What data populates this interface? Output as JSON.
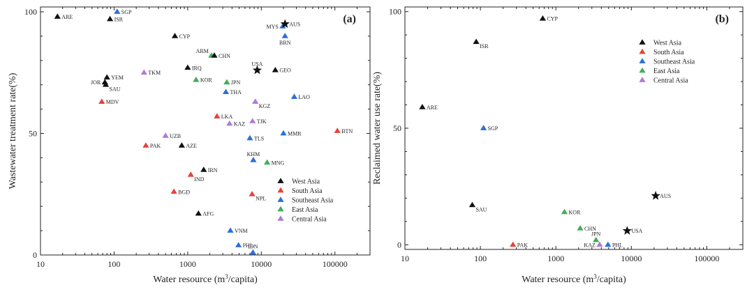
{
  "colors": {
    "West Asia": "#111111",
    "South Asia": "#e8423a",
    "Southeast Asia": "#2a6fdb",
    "East Asia": "#3fae5a",
    "Central Asia": "#b07ad8"
  },
  "chart_data": [
    {
      "type": "scatter",
      "panel_label": "(a)",
      "xlabel": "Water resource (m3/capita)",
      "xlabel_base": "Water resource (m",
      "xlabel_sup": "3",
      "xlabel_tail": "/capita)",
      "ylabel": "Wastewater treatment rate(%)",
      "xscale": "log",
      "xlim": [
        10,
        300000
      ],
      "ylim": [
        0,
        102
      ],
      "xticks": [
        10,
        100,
        1000,
        10000,
        100000
      ],
      "xtick_labels": [
        "10",
        "100",
        "1000",
        "10000",
        "100000"
      ],
      "yticks": [
        0,
        50,
        100
      ],
      "ytick_labels": [
        "0",
        "50",
        "100"
      ],
      "legend": [
        "West Asia",
        "South Asia",
        "Southeast Asia",
        "East Asia",
        "Central Asia"
      ],
      "legend_position": "lower-right",
      "points": [
        {
          "label": "ARE",
          "x": 17,
          "y": 98,
          "group": "West Asia"
        },
        {
          "label": "ISR",
          "x": 88,
          "y": 97,
          "group": "West Asia"
        },
        {
          "label": "SGP",
          "x": 110,
          "y": 100,
          "group": "Southeast Asia"
        },
        {
          "label": "CYP",
          "x": 670,
          "y": 90,
          "group": "West Asia"
        },
        {
          "label": "MYS",
          "x": 19500,
          "y": 94,
          "group": "Southeast Asia",
          "label_side": "left"
        },
        {
          "label": "AUS",
          "x": 21000,
          "y": 95,
          "group": "West Asia",
          "marker": "star"
        },
        {
          "label": "BRN",
          "x": 21000,
          "y": 90,
          "group": "Southeast Asia",
          "label_side": "below"
        },
        {
          "label": "ARM",
          "x": 2100,
          "y": 82,
          "group": "East Asia",
          "label_side": "above-left"
        },
        {
          "label": "CHN",
          "x": 2300,
          "y": 82,
          "group": "West Asia"
        },
        {
          "label": "YEM",
          "x": 80,
          "y": 73,
          "group": "West Asia"
        },
        {
          "label": "TKM",
          "x": 255,
          "y": 75,
          "group": "Central Asia"
        },
        {
          "label": "IRQ",
          "x": 1000,
          "y": 77,
          "group": "West Asia"
        },
        {
          "label": "USA",
          "x": 8800,
          "y": 76,
          "group": "West Asia",
          "marker": "star",
          "label_side": "above"
        },
        {
          "label": "GEO",
          "x": 15500,
          "y": 76,
          "group": "West Asia"
        },
        {
          "label": "KOR",
          "x": 1300,
          "y": 72,
          "group": "East Asia"
        },
        {
          "label": "JPN",
          "x": 3400,
          "y": 71,
          "group": "East Asia"
        },
        {
          "label": "JOR",
          "x": 75,
          "y": 71,
          "group": "West Asia",
          "label_side": "left"
        },
        {
          "label": "SAU",
          "x": 77,
          "y": 70,
          "group": "West Asia",
          "label_side": "below-right"
        },
        {
          "label": "THA",
          "x": 3300,
          "y": 67,
          "group": "Southeast Asia"
        },
        {
          "label": "LAO",
          "x": 28000,
          "y": 65,
          "group": "Southeast Asia"
        },
        {
          "label": "MDV",
          "x": 68,
          "y": 63,
          "group": "South Asia"
        },
        {
          "label": "KGZ",
          "x": 8300,
          "y": 63,
          "group": "Central Asia",
          "label_side": "below-right"
        },
        {
          "label": "LKA",
          "x": 2500,
          "y": 57,
          "group": "South Asia"
        },
        {
          "label": "KAZ",
          "x": 3700,
          "y": 54,
          "group": "Central Asia"
        },
        {
          "label": "TJK",
          "x": 7600,
          "y": 55,
          "group": "Central Asia"
        },
        {
          "label": "BTN",
          "x": 108000,
          "y": 51,
          "group": "South Asia"
        },
        {
          "label": "MMR",
          "x": 20000,
          "y": 50,
          "group": "Southeast Asia"
        },
        {
          "label": "UZB",
          "x": 500,
          "y": 49,
          "group": "Central Asia"
        },
        {
          "label": "TLS",
          "x": 7000,
          "y": 48,
          "group": "Southeast Asia"
        },
        {
          "label": "PAK",
          "x": 270,
          "y": 45,
          "group": "South Asia"
        },
        {
          "label": "AZE",
          "x": 830,
          "y": 45,
          "group": "West Asia"
        },
        {
          "label": "KHM",
          "x": 7800,
          "y": 39,
          "group": "Southeast Asia",
          "label_side": "above"
        },
        {
          "label": "MNG",
          "x": 12000,
          "y": 38,
          "group": "East Asia"
        },
        {
          "label": "IRN",
          "x": 1650,
          "y": 35,
          "group": "West Asia"
        },
        {
          "label": "IND",
          "x": 1100,
          "y": 33,
          "group": "South Asia",
          "label_side": "below-right"
        },
        {
          "label": "BGD",
          "x": 650,
          "y": 26,
          "group": "South Asia"
        },
        {
          "label": "NPL",
          "x": 7500,
          "y": 25,
          "group": "South Asia",
          "label_side": "below-right"
        },
        {
          "label": "AFG",
          "x": 1400,
          "y": 17,
          "group": "West Asia"
        },
        {
          "label": "VNM",
          "x": 3800,
          "y": 10,
          "group": "Southeast Asia"
        },
        {
          "label": "PHL",
          "x": 4900,
          "y": 4,
          "group": "Southeast Asia"
        },
        {
          "label": "IDN",
          "x": 7700,
          "y": 1,
          "group": "Southeast Asia",
          "label_side": "above"
        }
      ]
    },
    {
      "type": "scatter",
      "panel_label": "(b)",
      "xlabel": "Water resource (m3/capita)",
      "xlabel_base": "Water resource (m",
      "xlabel_sup": "3",
      "xlabel_tail": "/capita)",
      "ylabel": "Reclaimed water use rate(%)",
      "xscale": "log",
      "xlim": [
        10,
        300000
      ],
      "ylim": [
        -2,
        102
      ],
      "xticks": [
        10,
        100,
        1000,
        10000,
        100000
      ],
      "xtick_labels": [
        "10",
        "100",
        "1000",
        "10000",
        "100000"
      ],
      "yticks": [
        0,
        50,
        100
      ],
      "ytick_labels": [
        "0",
        "50",
        "100"
      ],
      "legend": [
        "West Asia",
        "South Asia",
        "Southeast Asia",
        "East Asia",
        "Central Asia"
      ],
      "legend_position": "top-right",
      "points": [
        {
          "label": "CYP",
          "x": 670,
          "y": 97,
          "group": "West Asia"
        },
        {
          "label": "ISR",
          "x": 88,
          "y": 87,
          "group": "West Asia",
          "label_side": "below-right"
        },
        {
          "label": "ARE",
          "x": 17,
          "y": 59,
          "group": "West Asia"
        },
        {
          "label": "SGP",
          "x": 110,
          "y": 50,
          "group": "Southeast Asia"
        },
        {
          "label": "AUS",
          "x": 21000,
          "y": 21,
          "group": "West Asia",
          "marker": "star"
        },
        {
          "label": "SAU",
          "x": 78,
          "y": 17,
          "group": "West Asia",
          "label_side": "below-right"
        },
        {
          "label": "KOR",
          "x": 1300,
          "y": 14,
          "group": "East Asia"
        },
        {
          "label": "CHN",
          "x": 2100,
          "y": 7,
          "group": "East Asia"
        },
        {
          "label": "USA",
          "x": 8800,
          "y": 6,
          "group": "West Asia",
          "marker": "star"
        },
        {
          "label": "JPN",
          "x": 3400,
          "y": 2,
          "group": "East Asia",
          "label_side": "above"
        },
        {
          "label": "PAK",
          "x": 270,
          "y": 0,
          "group": "South Asia"
        },
        {
          "label": "KAZ",
          "x": 3800,
          "y": 0,
          "group": "Central Asia",
          "label_side": "left"
        },
        {
          "label": "PHL",
          "x": 4900,
          "y": 0,
          "group": "Southeast Asia"
        }
      ]
    }
  ]
}
